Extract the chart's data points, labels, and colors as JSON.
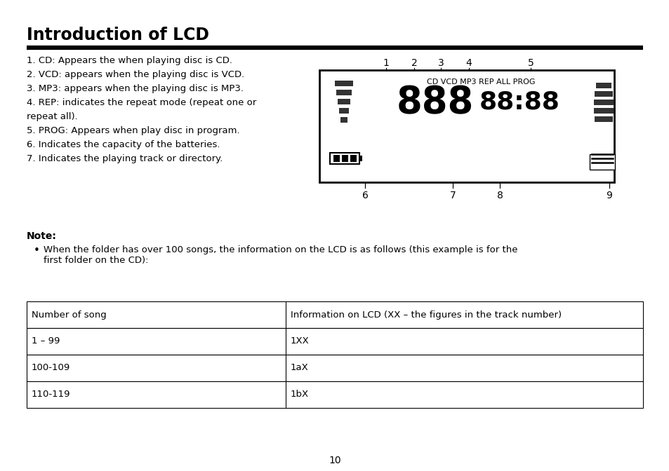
{
  "title": "Introduction of LCD",
  "title_fontsize": 17,
  "body_lines": [
    "1. CD: Appears the when playing disc is CD.",
    "2. VCD: appears when the playing disc is VCD.",
    "3. MP3: appears when the playing disc is MP3.",
    "4. REP: indicates the repeat mode (repeat one or",
    "repeat all).",
    "5. PROG: Appears when play disc in program.",
    "6. Indicates the capacity of the batteries.",
    "7. Indicates the playing track or directory."
  ],
  "note_bold": "Note:",
  "note_bullet": "When the folder has over 100 songs, the information on the LCD is as follows (this example is for the\nfirst folder on the CD):",
  "lcd_top_labels": [
    "1",
    "2",
    "3",
    "4",
    "5"
  ],
  "lcd_bottom_labels": [
    "6",
    "7",
    "8",
    "9"
  ],
  "lcd_status_text": "CD VCD MP3 REP ALL PROG",
  "lcd_big": "888",
  "lcd_small": "88:88",
  "table_headers": [
    "Number of song",
    "Information on LCD (XX – the figures in the track number)"
  ],
  "table_rows": [
    [
      "1 – 99",
      "1XX"
    ],
    [
      "100-109",
      "1aX"
    ],
    [
      "110-119",
      "1bX"
    ]
  ],
  "page_number": "10",
  "bg_color": "#ffffff",
  "text_color": "#000000"
}
